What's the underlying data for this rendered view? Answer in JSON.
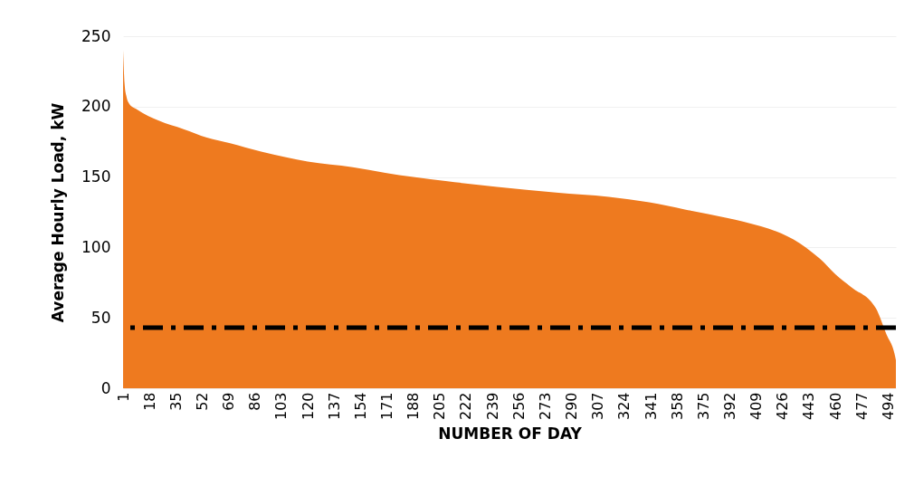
{
  "chart_data": {
    "type": "area",
    "xlabel": "NUMBER OF DAY",
    "ylabel": "Average Hourly Load, kW",
    "x": [
      1,
      2,
      3,
      5,
      10,
      24,
      40,
      55,
      70,
      90,
      106,
      120,
      149,
      170,
      188,
      210,
      242,
      280,
      314,
      340,
      363,
      390,
      412,
      425,
      441,
      450,
      460,
      470,
      486,
      493,
      498,
      499
    ],
    "series": [
      {
        "color": "#ee7a1f",
        "values": [
          240,
          216,
          208,
          202,
          198,
          190,
          184,
          178,
          174,
          168,
          164,
          161,
          157,
          153,
          150,
          147,
          143,
          139,
          136,
          132,
          127,
          121,
          115,
          110,
          100,
          92,
          81,
          72,
          57,
          38,
          25,
          20
        ]
      }
    ],
    "xlim": [
      1,
      499
    ],
    "xticks": [
      1,
      18,
      35,
      52,
      69,
      86,
      103,
      120,
      137,
      154,
      171,
      188,
      205,
      222,
      239,
      256,
      273,
      290,
      307,
      324,
      341,
      358,
      375,
      392,
      409,
      426,
      443,
      460,
      477,
      494
    ],
    "ylim": [
      0,
      250
    ],
    "yticks": [
      0,
      50,
      100,
      150,
      200,
      250
    ],
    "grid": "y",
    "ref_lines": [
      {
        "axis": "y",
        "value": 43,
        "color": "#000000",
        "line_style": "dashed"
      }
    ]
  }
}
